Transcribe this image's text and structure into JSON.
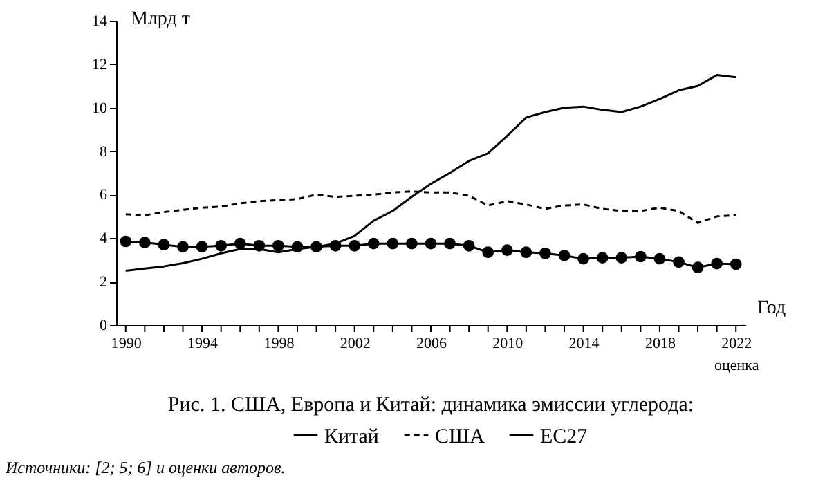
{
  "chart_data": {
    "type": "line",
    "title": "Рис. 1. США, Европа и Китай: динамика эмиссии углерода:",
    "xlabel": "Год",
    "ylabel": "Млрд т",
    "annotations": [
      "Источники: [2; 5; 6] и оценки авторов."
    ],
    "x": [
      1990,
      1991,
      1992,
      1993,
      1994,
      1995,
      1996,
      1997,
      1998,
      1999,
      2000,
      2001,
      2002,
      2003,
      2004,
      2005,
      2006,
      2007,
      2008,
      2009,
      2010,
      2011,
      2012,
      2013,
      2014,
      2015,
      2016,
      2017,
      2018,
      2019,
      2020,
      2021,
      2022
    ],
    "series": [
      {
        "name": "Китай",
        "color": "#000000",
        "line_style": "solid",
        "marker": "none",
        "values": [
          2.5,
          2.6,
          2.7,
          2.85,
          3.05,
          3.3,
          3.5,
          3.5,
          3.35,
          3.5,
          3.6,
          3.75,
          4.1,
          4.8,
          5.25,
          5.9,
          6.5,
          7.0,
          7.55,
          7.9,
          8.7,
          9.55,
          9.8,
          10.0,
          10.05,
          9.9,
          9.8,
          10.05,
          10.4,
          10.8,
          11.0,
          11.5,
          11.4
        ]
      },
      {
        "name": "США",
        "color": "#000000",
        "line_style": "dashed",
        "marker": "none",
        "values": [
          5.1,
          5.05,
          5.2,
          5.3,
          5.4,
          5.45,
          5.6,
          5.7,
          5.75,
          5.8,
          6.0,
          5.9,
          5.95,
          6.0,
          6.1,
          6.15,
          6.1,
          6.1,
          5.95,
          5.5,
          5.7,
          5.55,
          5.35,
          5.5,
          5.55,
          5.35,
          5.25,
          5.25,
          5.4,
          5.25,
          4.7,
          5.0,
          5.05
        ]
      },
      {
        "name": "ЕС27",
        "color": "#000000",
        "line_style": "solid",
        "marker": "circle",
        "values": [
          3.85,
          3.8,
          3.7,
          3.6,
          3.6,
          3.65,
          3.75,
          3.65,
          3.65,
          3.6,
          3.6,
          3.65,
          3.65,
          3.75,
          3.75,
          3.75,
          3.75,
          3.75,
          3.65,
          3.35,
          3.45,
          3.35,
          3.3,
          3.2,
          3.05,
          3.1,
          3.1,
          3.15,
          3.05,
          2.9,
          2.65,
          2.83,
          2.8
        ]
      }
    ],
    "xlim": [
      1989.5,
      2022.5
    ],
    "xticks": [
      1990,
      {
        "value": 1991,
        "label": null
      },
      {
        "value": 1992,
        "label": null
      },
      {
        "value": 1993,
        "label": null
      },
      1994,
      {
        "value": 1995,
        "label": null
      },
      {
        "value": 1996,
        "label": null
      },
      {
        "value": 1997,
        "label": null
      },
      1998,
      {
        "value": 1999,
        "label": null
      },
      {
        "value": 2000,
        "label": null
      },
      {
        "value": 2001,
        "label": null
      },
      2002,
      {
        "value": 2003,
        "label": null
      },
      {
        "value": 2004,
        "label": null
      },
      {
        "value": 2005,
        "label": null
      },
      2006,
      {
        "value": 2007,
        "label": null
      },
      {
        "value": 2008,
        "label": null
      },
      {
        "value": 2009,
        "label": null
      },
      2010,
      {
        "value": 2011,
        "label": null
      },
      {
        "value": 2012,
        "label": null
      },
      {
        "value": 2013,
        "label": null
      },
      2014,
      {
        "value": 2015,
        "label": null
      },
      {
        "value": 2016,
        "label": null
      },
      {
        "value": 2017,
        "label": null
      },
      2018,
      {
        "value": 2019,
        "label": null
      },
      {
        "value": 2020,
        "label": null
      },
      {
        "value": 2021,
        "label": null
      },
      {
        "value": 2022,
        "label": "2022\nоценка"
      }
    ],
    "ylim": [
      0,
      14
    ],
    "yticks": [
      0,
      2,
      4,
      6,
      8,
      10,
      12,
      14
    ],
    "grid": false,
    "legend": "bottom"
  }
}
